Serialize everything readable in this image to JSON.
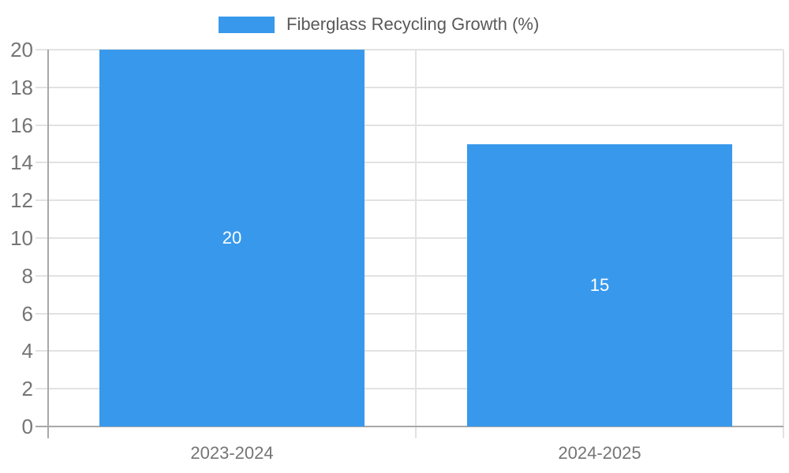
{
  "legend": {
    "label": "Fiberglass Recycling Growth (%)"
  },
  "chart_data": {
    "type": "bar",
    "categories": [
      "2023-2024",
      "2024-2025"
    ],
    "series": [
      {
        "name": "Fiberglass Recycling Growth (%)",
        "values": [
          20,
          15
        ]
      }
    ],
    "bar_labels": [
      "20",
      "15"
    ],
    "title": "",
    "xlabel": "",
    "ylabel": "",
    "ylim": [
      0,
      20
    ],
    "ytick_step": 2,
    "ytick_labels": [
      "0",
      "2",
      "4",
      "6",
      "8",
      "10",
      "12",
      "14",
      "16",
      "18",
      "20"
    ],
    "grid": true,
    "legend_position": "top-center"
  },
  "colors": {
    "background": "#ffffff",
    "bar": "#3899ec",
    "grid": "#e2e2e2",
    "axis": "#a8a8a8",
    "tick_text": "#757575",
    "legend_text": "#595959",
    "bar_label_text": "#ffffff"
  }
}
